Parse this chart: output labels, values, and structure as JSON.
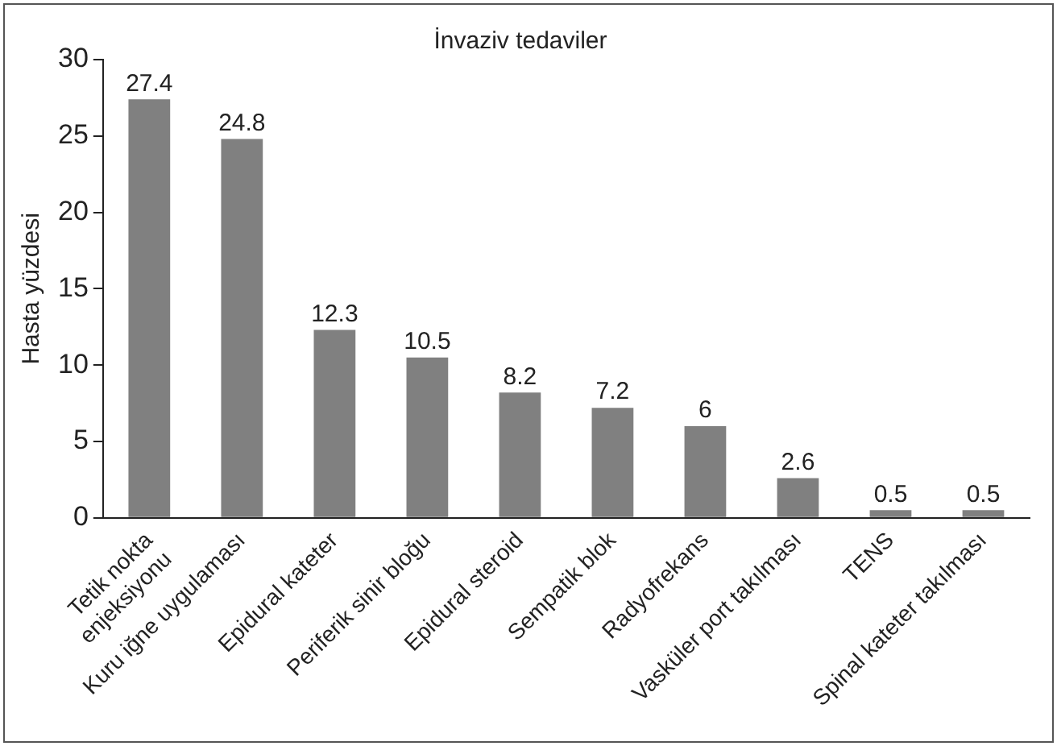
{
  "chart_data": {
    "type": "bar",
    "title": "İnvaziv tedaviler",
    "ylabel": "Hasta yüzdesi",
    "categories": [
      "Tetik nokta\nenjeksiyonu",
      "Kuru iğne uygulaması",
      "Epidural kateter",
      "Periferik sinir bloğu",
      "Epidural steroid",
      "Sempatik blok",
      "Radyofrekans",
      "Vasküler port takılması",
      "TENS",
      "Spinal kateter takılması"
    ],
    "values": [
      27.4,
      24.8,
      12.3,
      10.5,
      8.2,
      7.2,
      6,
      2.6,
      0.5,
      0.5
    ],
    "color": "#808080",
    "ylim": [
      0,
      30
    ],
    "yticks": [
      0,
      5,
      10,
      15,
      20,
      25,
      30
    ],
    "grid": false,
    "legend": false,
    "data_labels": true
  }
}
